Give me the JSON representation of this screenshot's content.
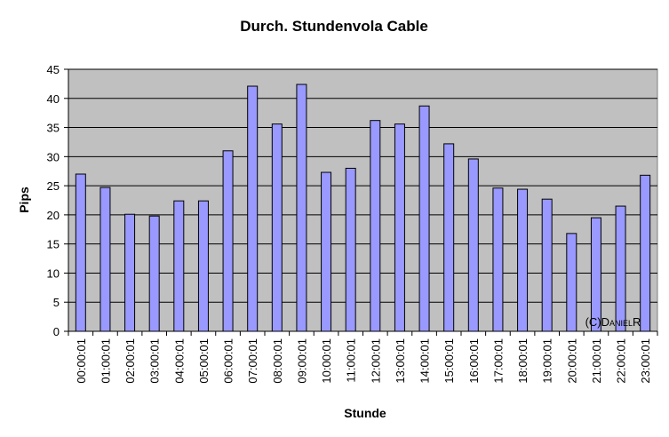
{
  "chart_data": {
    "type": "bar",
    "title": "Durch. Stundenvola Cable",
    "x_label": "Stunde",
    "y_label": "Pips",
    "annotation": "(C)DanielR",
    "categories": [
      "00:00:01",
      "01:00:01",
      "02:00:01",
      "03:00:01",
      "04:00:01",
      "05:00:01",
      "06:00:01",
      "07:00:01",
      "08:00:01",
      "09:00:01",
      "10:00:01",
      "11:00:01",
      "12:00:01",
      "13:00:01",
      "14:00:01",
      "15:00:01",
      "16:00:01",
      "17:00:01",
      "18:00:01",
      "19:00:01",
      "20:00:01",
      "21:00:01",
      "22:00:01",
      "23:00:01"
    ],
    "values": [
      27,
      24.7,
      20.1,
      19.8,
      22.4,
      22.4,
      31,
      42.1,
      35.6,
      42.4,
      27.3,
      28,
      36.2,
      35.6,
      38.7,
      32.2,
      29.6,
      24.6,
      24.4,
      22.7,
      16.8,
      19.5,
      21.5,
      26.8
    ],
    "color": "#9999ff",
    "ylim": [
      0,
      45
    ],
    "yticks": [
      0,
      5,
      10,
      15,
      20,
      25,
      30,
      35,
      40,
      45
    ],
    "grid": true
  }
}
